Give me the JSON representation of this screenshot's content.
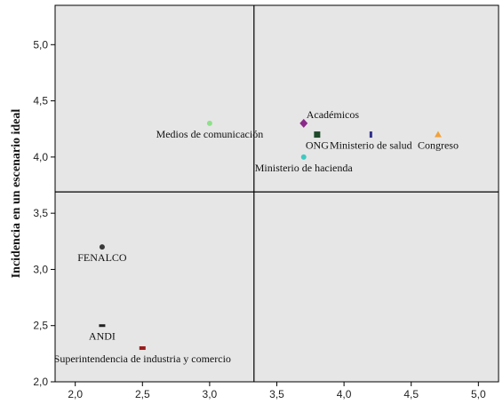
{
  "chart_data": {
    "type": "scatter",
    "title": "",
    "xlabel": "",
    "ylabel": "Incidencia en un escenario ideal",
    "xlim": [
      1.85,
      5.15
    ],
    "ylim": [
      2.0,
      5.35
    ],
    "x_ticks": [
      "2,0",
      "2,5",
      "3,0",
      "3,5",
      "4,0",
      "4,5",
      "5,0"
    ],
    "x_tick_values": [
      2.0,
      2.5,
      3.0,
      3.5,
      4.0,
      4.5,
      5.0
    ],
    "y_ticks": [
      "2,0",
      "2,5",
      "3,0",
      "3,5",
      "4,0",
      "4,5",
      "5,0"
    ],
    "y_tick_values": [
      2.0,
      2.5,
      3.0,
      3.5,
      4.0,
      4.5,
      5.0
    ],
    "reference_lines": {
      "x": 3.33,
      "y": 3.69
    },
    "grid": false,
    "background": "#e6e6e6",
    "points": [
      {
        "label": "Medios de comunicación",
        "x": 3.0,
        "y": 4.3,
        "marker": "circle",
        "color": "#8fe08a",
        "label_pos": "below"
      },
      {
        "label": "Académicos",
        "x": 3.7,
        "y": 4.3,
        "marker": "diamond",
        "color": "#8b2a8a",
        "label_pos": "above-right"
      },
      {
        "label": "ONG",
        "x": 3.8,
        "y": 4.2,
        "marker": "square",
        "color": "#1f4a2a",
        "label_pos": "below"
      },
      {
        "label": "Ministerio de salud",
        "x": 4.2,
        "y": 4.2,
        "marker": "bar",
        "color": "#2e2f8a",
        "label_pos": "below"
      },
      {
        "label": "Congreso",
        "x": 4.7,
        "y": 4.2,
        "marker": "triangle",
        "color": "#f2a23a",
        "label_pos": "below"
      },
      {
        "label": "Ministerio de hacienda",
        "x": 3.7,
        "y": 4.0,
        "marker": "circle",
        "color": "#3ec9c0",
        "label_pos": "below"
      },
      {
        "label": "FENALCO",
        "x": 2.2,
        "y": 3.2,
        "marker": "circle",
        "color": "#3a3a3a",
        "label_pos": "below"
      },
      {
        "label": "ANDI",
        "x": 2.2,
        "y": 2.5,
        "marker": "hbar",
        "color": "#222222",
        "label_pos": "below"
      },
      {
        "label": "Superintendencia de industria y comercio",
        "x": 2.5,
        "y": 2.3,
        "marker": "rect",
        "color": "#9a1b1b",
        "label_pos": "below"
      }
    ]
  }
}
